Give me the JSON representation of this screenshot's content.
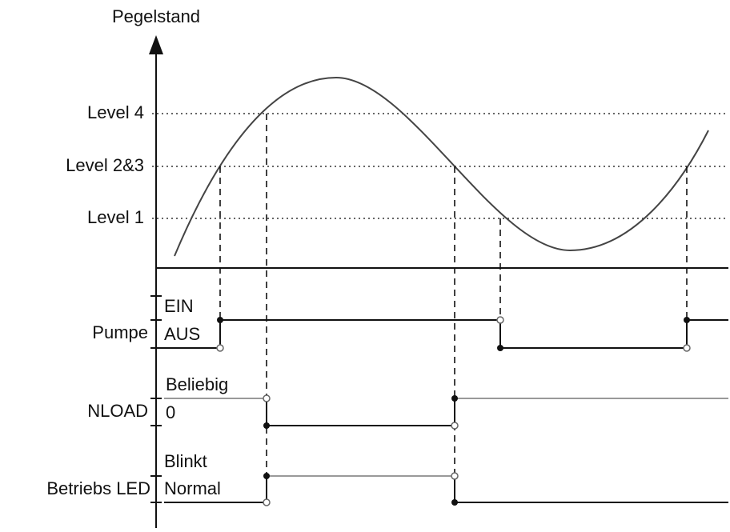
{
  "axis_label": "Pegelstand",
  "levels": [
    "Level 4",
    "Level 2&3",
    "Level 1"
  ],
  "signals": [
    {
      "name": "Pumpe",
      "states": [
        "EIN",
        "AUS"
      ]
    },
    {
      "name": "NLOAD",
      "states": [
        "Beliebig",
        "0"
      ]
    },
    {
      "name": "Betriebs LED",
      "states": [
        "Blinkt",
        "Normal"
      ]
    }
  ]
}
